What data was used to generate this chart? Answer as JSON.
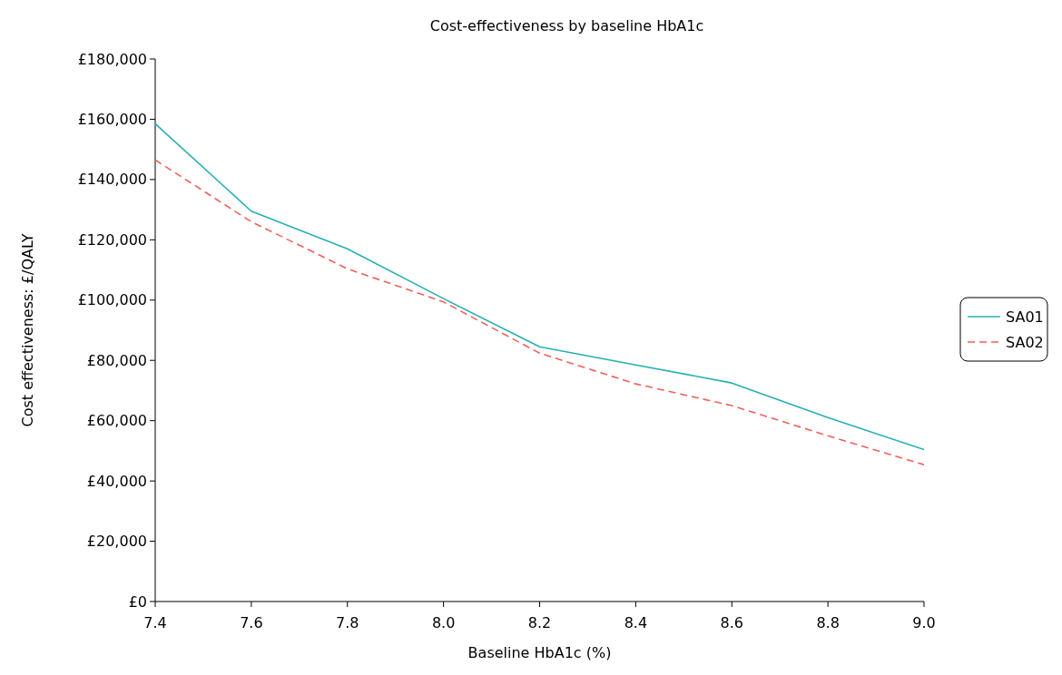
{
  "chart_data": {
    "type": "line",
    "title": "Cost-effectiveness by baseline HbA1c",
    "xlabel": "Baseline HbA1c (%)",
    "ylabel": "Cost effectiveness: £/QALY",
    "x": [
      7.4,
      7.6,
      7.8,
      8.0,
      8.2,
      8.4,
      8.6,
      8.8,
      9.0
    ],
    "series": [
      {
        "name": "SA01",
        "color": "#26b0b0",
        "line_style": "solid",
        "values": [
          158500,
          129500,
          117000,
          100500,
          84500,
          78500,
          72500,
          61000,
          50400
        ]
      },
      {
        "name": "SA02",
        "color": "#f0605a",
        "line_style": "dashed",
        "values": [
          146500,
          126000,
          110400,
          99400,
          82400,
          72200,
          65000,
          55000,
          45400
        ]
      }
    ],
    "xlim": [
      7.4,
      9.0
    ],
    "xticks": [
      {
        "value": 7.4,
        "label": "7.4"
      },
      {
        "value": 7.6,
        "label": "7.6"
      },
      {
        "value": 7.8,
        "label": "7.8"
      },
      {
        "value": 8.0,
        "label": "8.0"
      },
      {
        "value": 8.2,
        "label": "8.2"
      },
      {
        "value": 8.4,
        "label": "8.4"
      },
      {
        "value": 8.6,
        "label": "8.6"
      },
      {
        "value": 8.8,
        "label": "8.8"
      },
      {
        "value": 9.0,
        "label": "9.0"
      }
    ],
    "ylim": [
      0,
      180000
    ],
    "yticks": [
      {
        "value": 0,
        "label": "£0"
      },
      {
        "value": 20000,
        "label": "£20,000"
      },
      {
        "value": 40000,
        "label": "£40,000"
      },
      {
        "value": 60000,
        "label": "£60,000"
      },
      {
        "value": 80000,
        "label": "£80,000"
      },
      {
        "value": 100000,
        "label": "£100,000"
      },
      {
        "value": 120000,
        "label": "£120,000"
      },
      {
        "value": 140000,
        "label": "£140,000"
      },
      {
        "value": 160000,
        "label": "£160,000"
      },
      {
        "value": 180000,
        "label": "£180,000"
      }
    ],
    "grid": false,
    "legend": "right",
    "marker": "none"
  }
}
